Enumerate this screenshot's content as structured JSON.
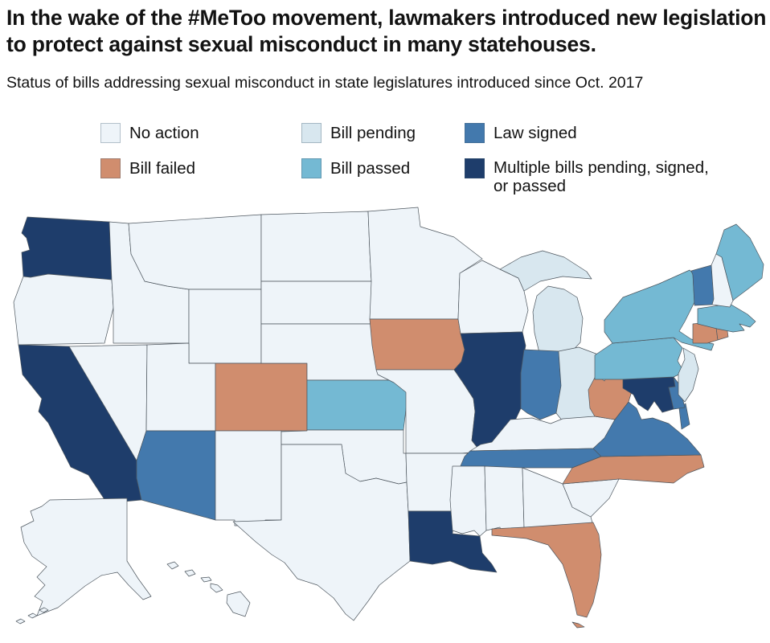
{
  "header": {
    "title": "In the wake of the #MeToo movement, lawmakers introduced new legislation to protect against sexual misconduct in many statehouses.",
    "subtitle": "Status of bills addressing sexual misconduct in state legislatures introduced since Oct. 2017"
  },
  "chart_data": {
    "type": "choropleth",
    "title": "In the wake of the #MeToo movement, lawmakers introduced new legislation to protect against sexual misconduct in many statehouses.",
    "subtitle": "Status of bills addressing sexual misconduct in state legislatures introduced since Oct. 2017",
    "background": "#ffffff",
    "state_border_color": "#4d565e",
    "legend": [
      {
        "key": "no_action",
        "label": "No action",
        "color": "#eef4f9"
      },
      {
        "key": "bill_pending",
        "label": "Bill pending",
        "color": "#d8e7ef"
      },
      {
        "key": "law_signed",
        "label": "Law signed",
        "color": "#4379ad"
      },
      {
        "key": "bill_failed",
        "label": "Bill failed",
        "color": "#d08d6e"
      },
      {
        "key": "bill_passed",
        "label": "Bill passed",
        "color": "#74b9d3"
      },
      {
        "key": "multiple",
        "label": "Multiple bills pending, signed, or passed",
        "color": "#1e3d6b"
      }
    ],
    "states": [
      {
        "id": "WA",
        "name": "Washington",
        "status": "multiple"
      },
      {
        "id": "OR",
        "name": "Oregon",
        "status": "no_action"
      },
      {
        "id": "CA",
        "name": "California",
        "status": "multiple"
      },
      {
        "id": "NV",
        "name": "Nevada",
        "status": "no_action"
      },
      {
        "id": "ID",
        "name": "Idaho",
        "status": "no_action"
      },
      {
        "id": "MT",
        "name": "Montana",
        "status": "no_action"
      },
      {
        "id": "WY",
        "name": "Wyoming",
        "status": "no_action"
      },
      {
        "id": "UT",
        "name": "Utah",
        "status": "no_action"
      },
      {
        "id": "CO",
        "name": "Colorado",
        "status": "bill_failed"
      },
      {
        "id": "AZ",
        "name": "Arizona",
        "status": "law_signed"
      },
      {
        "id": "NM",
        "name": "New Mexico",
        "status": "no_action"
      },
      {
        "id": "ND",
        "name": "North Dakota",
        "status": "no_action"
      },
      {
        "id": "SD",
        "name": "South Dakota",
        "status": "no_action"
      },
      {
        "id": "NE",
        "name": "Nebraska",
        "status": "no_action"
      },
      {
        "id": "KS",
        "name": "Kansas",
        "status": "bill_passed"
      },
      {
        "id": "OK",
        "name": "Oklahoma",
        "status": "no_action"
      },
      {
        "id": "TX",
        "name": "Texas",
        "status": "no_action"
      },
      {
        "id": "MN",
        "name": "Minnesota",
        "status": "no_action"
      },
      {
        "id": "IA",
        "name": "Iowa",
        "status": "bill_failed"
      },
      {
        "id": "MO",
        "name": "Missouri",
        "status": "no_action"
      },
      {
        "id": "AR",
        "name": "Arkansas",
        "status": "no_action"
      },
      {
        "id": "LA",
        "name": "Louisiana",
        "status": "multiple"
      },
      {
        "id": "WI",
        "name": "Wisconsin",
        "status": "no_action"
      },
      {
        "id": "IL",
        "name": "Illinois",
        "status": "multiple"
      },
      {
        "id": "MI",
        "name": "Michigan",
        "status": "bill_pending"
      },
      {
        "id": "IN",
        "name": "Indiana",
        "status": "law_signed"
      },
      {
        "id": "OH",
        "name": "Ohio",
        "status": "bill_pending"
      },
      {
        "id": "KY",
        "name": "Kentucky",
        "status": "no_action"
      },
      {
        "id": "TN",
        "name": "Tennessee",
        "status": "law_signed"
      },
      {
        "id": "MS",
        "name": "Mississippi",
        "status": "no_action"
      },
      {
        "id": "AL",
        "name": "Alabama",
        "status": "no_action"
      },
      {
        "id": "GA",
        "name": "Georgia",
        "status": "no_action"
      },
      {
        "id": "FL",
        "name": "Florida",
        "status": "bill_failed"
      },
      {
        "id": "SC",
        "name": "South Carolina",
        "status": "no_action"
      },
      {
        "id": "NC",
        "name": "North Carolina",
        "status": "bill_failed"
      },
      {
        "id": "VA",
        "name": "Virginia",
        "status": "law_signed"
      },
      {
        "id": "WV",
        "name": "West Virginia",
        "status": "bill_failed"
      },
      {
        "id": "MD",
        "name": "Maryland",
        "status": "multiple"
      },
      {
        "id": "DE",
        "name": "Delaware",
        "status": "law_signed"
      },
      {
        "id": "PA",
        "name": "Pennsylvania",
        "status": "bill_passed"
      },
      {
        "id": "NJ",
        "name": "New Jersey",
        "status": "bill_pending"
      },
      {
        "id": "NY",
        "name": "New York",
        "status": "bill_passed"
      },
      {
        "id": "CT",
        "name": "Connecticut",
        "status": "bill_failed"
      },
      {
        "id": "RI",
        "name": "Rhode Island",
        "status": "bill_failed"
      },
      {
        "id": "MA",
        "name": "Massachusetts",
        "status": "bill_passed"
      },
      {
        "id": "VT",
        "name": "Vermont",
        "status": "law_signed"
      },
      {
        "id": "NH",
        "name": "New Hampshire",
        "status": "no_action"
      },
      {
        "id": "ME",
        "name": "Maine",
        "status": "bill_passed"
      },
      {
        "id": "AK",
        "name": "Alaska",
        "status": "no_action"
      },
      {
        "id": "HI",
        "name": "Hawaii",
        "status": "no_action"
      }
    ]
  }
}
